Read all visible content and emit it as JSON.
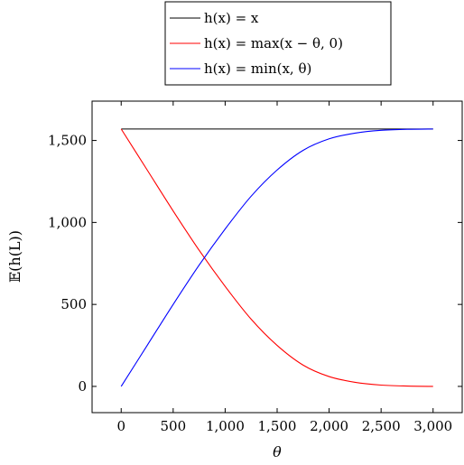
{
  "chart_data": {
    "type": "line",
    "title": "",
    "xlabel": "θ",
    "ylabel": "𝔼(h(L))",
    "xlim": [
      -280,
      3280
    ],
    "ylim": [
      -160,
      1740
    ],
    "x_ticks": [
      0,
      500,
      1000,
      1500,
      2000,
      2500,
      3000
    ],
    "x_tick_labels": [
      "0",
      "500",
      "1,000",
      "1,500",
      "2,000",
      "2,500",
      "3,000"
    ],
    "y_ticks": [
      0,
      500,
      1000,
      1500
    ],
    "y_tick_labels": [
      "0",
      "500",
      "1,000",
      "1,500"
    ],
    "grid": false,
    "legend_position": "top-center",
    "series": [
      {
        "name": "h(x) = x",
        "color": "#000000",
        "x": [
          0,
          3000
        ],
        "y": [
          1570,
          1570
        ]
      },
      {
        "name": "h(x) = max(x − θ, 0)",
        "color": "#ff0000",
        "x": [
          0,
          250,
          500,
          750,
          1000,
          1250,
          1500,
          1750,
          2000,
          2250,
          2500,
          2750,
          3000
        ],
        "y": [
          1570,
          1320,
          1070,
          830,
          610,
          410,
          250,
          130,
          60,
          25,
          8,
          2,
          0
        ]
      },
      {
        "name": "h(x) = min(x, θ)",
        "color": "#0000ff",
        "x": [
          0,
          250,
          500,
          750,
          1000,
          1250,
          1500,
          1750,
          2000,
          2250,
          2500,
          2750,
          3000
        ],
        "y": [
          0,
          250,
          500,
          740,
          960,
          1160,
          1320,
          1440,
          1510,
          1545,
          1562,
          1568,
          1570
        ]
      }
    ]
  }
}
